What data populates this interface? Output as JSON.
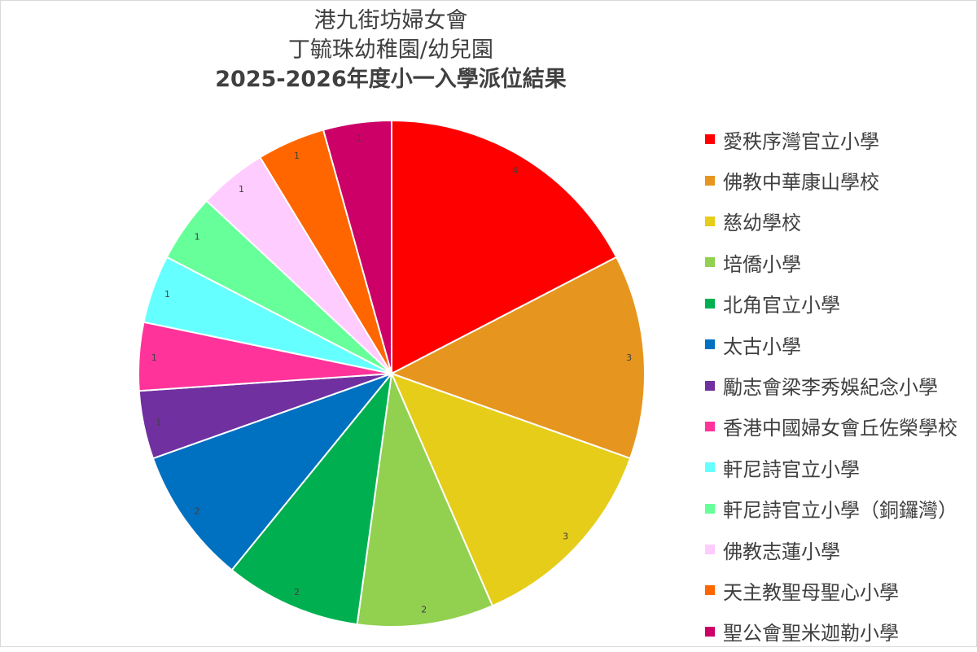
{
  "chart_data": {
    "type": "pie",
    "title": [
      "港九街坊婦女會",
      "丁毓珠幼稚園/幼兒園",
      "2025-2026年度小一入學派位結果"
    ],
    "categories": [
      "愛秩序灣官立小學",
      "佛教中華康山學校",
      "慈幼學校",
      "培僑小學",
      "北角官立小學",
      "太古小學",
      "勵志會梁李秀娛紀念小學",
      "香港中國婦女會丘佐榮學校",
      "軒尼詩官立小學",
      "軒尼詩官立小學（銅鑼灣）",
      "佛教志蓮小學",
      "天主教聖母聖心小學",
      "聖公會聖米迦勒小學"
    ],
    "values": [
      4,
      3,
      3,
      2,
      2,
      2,
      1,
      1,
      1,
      1,
      1,
      1,
      1
    ],
    "colors": [
      "#ff0000",
      "#e6961e",
      "#e6cd19",
      "#92d050",
      "#00b050",
      "#0070c0",
      "#7030a0",
      "#ff3399",
      "#66ffff",
      "#66ff99",
      "#ffccff",
      "#ff6600",
      "#cc0066"
    ],
    "legend_position": "right",
    "data_labels": true
  }
}
